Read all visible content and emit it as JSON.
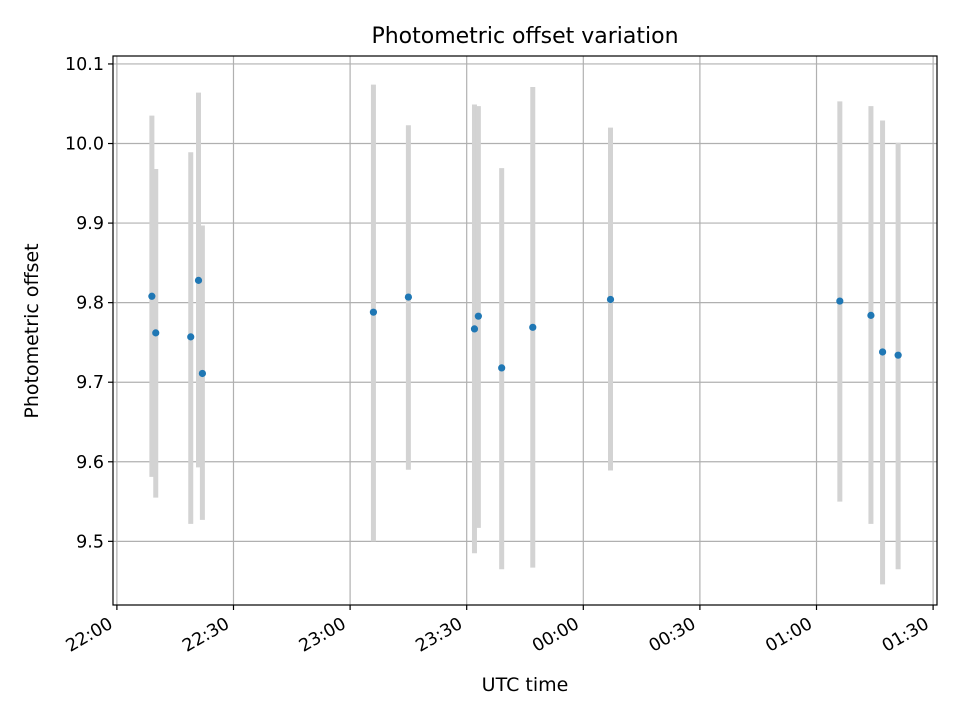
{
  "chart_data": {
    "type": "scatter",
    "title": "Photometric offset variation",
    "xlabel": "UTC time",
    "ylabel": "Photometric offset",
    "grid": true,
    "x_tick_labels": [
      "22:00",
      "22:30",
      "23:00",
      "23:30",
      "00:00",
      "00:30",
      "01:00",
      "01:30"
    ],
    "y_ticks": [
      9.5,
      9.6,
      9.7,
      9.8,
      9.9,
      10.0,
      10.1
    ],
    "y_tick_labels": [
      "9.5",
      "9.6",
      "9.7",
      "9.8",
      "9.9",
      "10.0",
      "10.1"
    ],
    "xlim": [
      "21:59",
      "01:31"
    ],
    "ylim": [
      9.42,
      10.11
    ],
    "colors": {
      "point": "#1f77b4",
      "errorbar": "#d3d3d3",
      "grid": "#b0b0b0"
    },
    "points": [
      {
        "x": "22:09",
        "y": 9.808,
        "ylow": 9.581,
        "yhigh": 10.035
      },
      {
        "x": "22:10",
        "y": 9.762,
        "ylow": 9.555,
        "yhigh": 9.968
      },
      {
        "x": "22:19",
        "y": 9.757,
        "ylow": 9.522,
        "yhigh": 9.989
      },
      {
        "x": "22:21",
        "y": 9.828,
        "ylow": 9.593,
        "yhigh": 10.064
      },
      {
        "x": "22:22",
        "y": 9.711,
        "ylow": 9.527,
        "yhigh": 9.897
      },
      {
        "x": "23:06",
        "y": 9.788,
        "ylow": 9.5,
        "yhigh": 10.074
      },
      {
        "x": "23:15",
        "y": 9.807,
        "ylow": 9.59,
        "yhigh": 10.023
      },
      {
        "x": "23:32",
        "y": 9.767,
        "ylow": 9.485,
        "yhigh": 10.049
      },
      {
        "x": "23:33",
        "y": 9.783,
        "ylow": 9.517,
        "yhigh": 10.047
      },
      {
        "x": "23:39",
        "y": 9.718,
        "ylow": 9.465,
        "yhigh": 9.969
      },
      {
        "x": "23:47",
        "y": 9.769,
        "ylow": 9.467,
        "yhigh": 10.071
      },
      {
        "x": "00:07",
        "y": 9.804,
        "ylow": 9.589,
        "yhigh": 10.02
      },
      {
        "x": "01:06",
        "y": 9.802,
        "ylow": 9.55,
        "yhigh": 10.053
      },
      {
        "x": "01:14",
        "y": 9.784,
        "ylow": 9.522,
        "yhigh": 10.047
      },
      {
        "x": "01:17",
        "y": 9.738,
        "ylow": 9.446,
        "yhigh": 10.029
      },
      {
        "x": "01:21",
        "y": 9.734,
        "ylow": 9.465,
        "yhigh": 10.001
      }
    ]
  }
}
